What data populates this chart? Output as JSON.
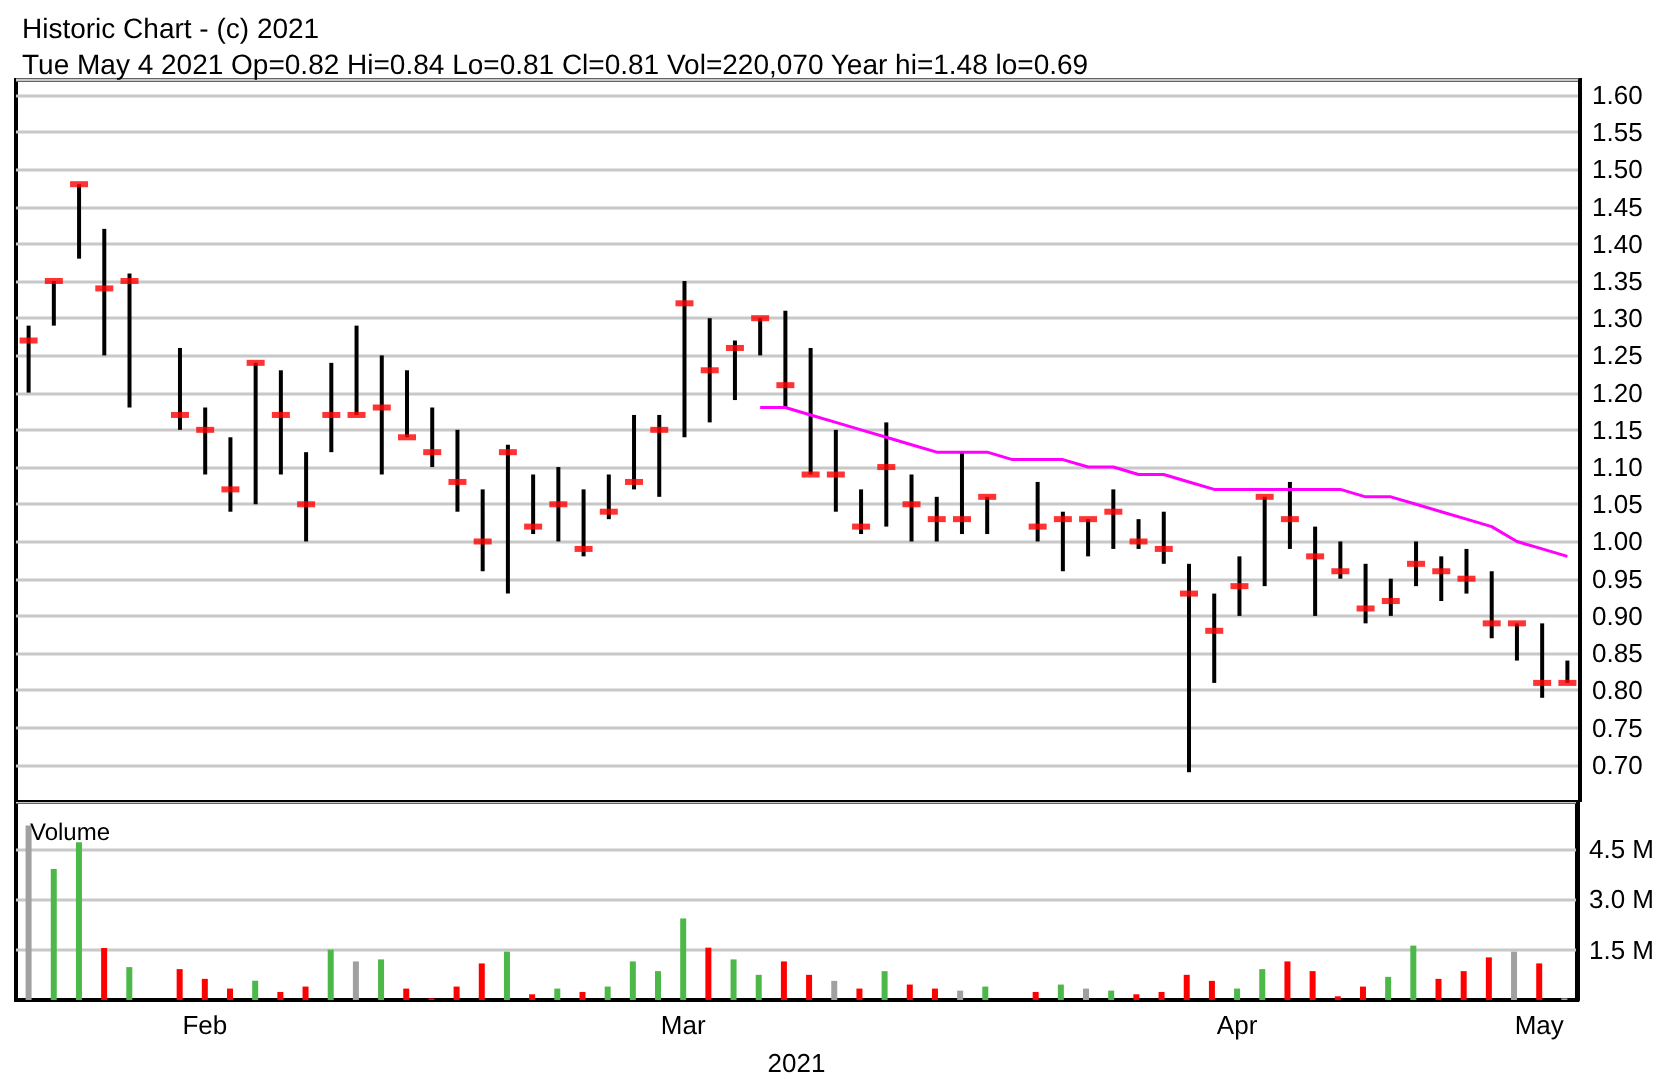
{
  "chart_data": [
    {
      "type": "bar",
      "title": "Historic Chart - (c) 2021",
      "subtitle": "Tue May 4 2021 Op=0.82 Hi=0.84 Lo=0.81 Cl=0.81 Vol=220,070 Year hi=1.48 lo=0.69",
      "tick_labels": "y",
      "grid": "y",
      "categories": [
        null,
        null,
        null,
        null,
        null,
        null,
        null,
        null,
        null,
        null,
        null,
        null,
        null,
        null,
        null,
        null,
        null,
        null,
        null,
        null,
        null,
        null,
        null,
        null,
        null,
        null,
        null,
        null,
        null,
        null,
        null,
        null,
        null,
        null,
        null,
        null,
        null,
        null,
        null,
        null,
        null,
        null,
        null,
        null,
        null,
        null,
        null,
        null,
        null,
        null,
        null,
        null,
        null,
        null,
        null,
        null,
        null,
        null,
        null,
        null,
        null,
        null
      ],
      "series": [
        {
          "color": "#000000",
          "base": [
            1.2,
            1.29,
            1.38,
            1.25,
            1.18,
            null,
            1.15,
            1.09,
            1.04,
            1.05,
            1.09,
            1.0,
            1.12,
            1.17,
            1.09,
            1.14,
            1.1,
            1.04,
            0.96,
            0.93,
            1.01,
            1.0,
            0.98,
            1.03,
            1.07,
            1.06,
            1.14,
            1.16,
            1.19,
            1.25,
            1.18,
            1.09,
            1.04,
            1.01,
            1.02,
            1.0,
            1.0,
            1.01,
            1.01,
            null,
            1.0,
            0.96,
            0.98,
            0.99,
            0.99,
            0.97,
            0.69,
            0.81,
            0.9,
            0.94,
            0.99,
            0.9,
            0.95,
            0.89,
            0.9,
            0.94,
            0.92,
            0.93,
            0.87,
            0.84,
            0.79,
            0.81
          ],
          "values": [
            0.09,
            0.06,
            0.1,
            0.17,
            0.18,
            null,
            0.11,
            0.09,
            0.1,
            0.19,
            0.14,
            0.12,
            0.12,
            0.12,
            0.16,
            0.09,
            0.08,
            0.11,
            0.11,
            0.2,
            0.08,
            0.1,
            0.09,
            0.06,
            0.1,
            0.11,
            0.21,
            0.14,
            0.08,
            0.05,
            0.13,
            0.17,
            0.11,
            0.06,
            0.14,
            0.09,
            0.06,
            0.11,
            0.05,
            null,
            0.08,
            0.08,
            0.05,
            0.08,
            0.04,
            0.07,
            0.28,
            0.12,
            0.08,
            0.12,
            0.09,
            0.12,
            0.05,
            0.08,
            0.05,
            0.06,
            0.06,
            0.06,
            0.09,
            0.05,
            0.1,
            0.03
          ]
        },
        {
          "type": "scatter",
          "color": "#ff0000",
          "values": [
            1.27,
            1.35,
            1.48,
            1.34,
            1.35,
            null,
            1.17,
            1.15,
            1.07,
            1.24,
            1.17,
            1.05,
            1.17,
            1.17,
            1.18,
            1.14,
            1.12,
            1.08,
            1.0,
            1.12,
            1.02,
            1.05,
            0.99,
            1.04,
            1.08,
            1.15,
            1.32,
            1.23,
            1.26,
            1.3,
            1.21,
            1.09,
            1.09,
            1.02,
            1.1,
            1.05,
            1.03,
            1.03,
            1.06,
            null,
            1.02,
            1.03,
            1.03,
            1.04,
            1.0,
            0.99,
            0.93,
            0.88,
            0.94,
            1.06,
            1.03,
            0.98,
            0.96,
            0.91,
            0.92,
            0.97,
            0.96,
            0.95,
            0.89,
            0.89,
            0.81,
            0.81
          ]
        },
        {
          "type": "line",
          "color": "#ff00ff",
          "marker": "none",
          "values": [
            null,
            null,
            null,
            null,
            null,
            null,
            null,
            null,
            null,
            null,
            null,
            null,
            null,
            null,
            null,
            null,
            null,
            null,
            null,
            null,
            null,
            null,
            null,
            null,
            null,
            null,
            null,
            null,
            null,
            1.18,
            1.18,
            1.17,
            1.16,
            1.15,
            1.14,
            1.13,
            1.12,
            1.12,
            1.12,
            1.11,
            1.11,
            1.11,
            1.1,
            1.1,
            1.09,
            1.09,
            1.08,
            1.07,
            1.07,
            1.07,
            1.07,
            1.07,
            1.07,
            1.06,
            1.06,
            1.05,
            1.04,
            1.03,
            1.02,
            1.0,
            0.99,
            0.98
          ]
        }
      ],
      "ylim": [
        0.65,
        1.62
      ],
      "yticks": [
        {
          "value": 0.7,
          "label": "0.70"
        },
        {
          "value": 0.75,
          "label": "0.75"
        },
        {
          "value": 0.8,
          "label": "0.80"
        },
        {
          "value": 0.85,
          "label": "0.85"
        },
        {
          "value": 0.9,
          "label": "0.90"
        },
        {
          "value": 0.95,
          "label": "0.95"
        },
        {
          "value": 1.0,
          "label": "1.00"
        },
        {
          "value": 1.05,
          "label": "1.05"
        },
        {
          "value": 1.1,
          "label": "1.10"
        },
        {
          "value": 1.15,
          "label": "1.15"
        },
        {
          "value": 1.2,
          "label": "1.20"
        },
        {
          "value": 1.25,
          "label": "1.25"
        },
        {
          "value": 1.3,
          "label": "1.30"
        },
        {
          "value": 1.35,
          "label": "1.35"
        },
        {
          "value": 1.4,
          "label": "1.40"
        },
        {
          "value": 1.45,
          "label": "1.45"
        },
        {
          "value": 1.5,
          "label": "1.50"
        },
        {
          "value": 1.55,
          "label": "1.55"
        },
        {
          "value": 1.6,
          "label": "1.60"
        }
      ]
    },
    {
      "type": "bar",
      "ylabel": "Volume",
      "xlabel": "2021",
      "grid": "y",
      "categories": [
        null,
        null,
        null,
        null,
        null,
        null,
        null,
        "Feb",
        null,
        null,
        null,
        null,
        null,
        null,
        null,
        null,
        null,
        null,
        null,
        null,
        null,
        null,
        null,
        null,
        null,
        null,
        "Mar",
        null,
        null,
        null,
        null,
        null,
        null,
        null,
        null,
        null,
        null,
        null,
        null,
        null,
        null,
        null,
        null,
        null,
        null,
        null,
        null,
        null,
        "Apr",
        null,
        null,
        null,
        null,
        null,
        null,
        null,
        null,
        null,
        null,
        null,
        "May",
        null
      ],
      "values": [
        5.2,
        3.9,
        4.7,
        1.55,
        0.98,
        null,
        0.92,
        0.63,
        0.34,
        0.57,
        0.24,
        0.4,
        1.5,
        1.15,
        1.21,
        0.34,
        0.05,
        0.4,
        1.09,
        1.44,
        0.17,
        0.34,
        0.24,
        0.4,
        1.15,
        0.86,
        2.43,
        1.56,
        1.21,
        0.75,
        1.15,
        0.75,
        0.57,
        0.34,
        0.86,
        0.46,
        0.34,
        0.28,
        0.4,
        null,
        0.24,
        0.46,
        0.34,
        0.28,
        0.17,
        0.24,
        0.75,
        0.57,
        0.34,
        0.92,
        1.15,
        0.86,
        0.11,
        0.4,
        0.69,
        1.62,
        0.63,
        0.86,
        1.27,
        1.44,
        1.09,
        0.05
      ],
      "colors": [
        "#a0a0a0",
        "#4cb848",
        "#4cb848",
        "#ff0000",
        "#4cb848",
        null,
        "#ff0000",
        "#ff0000",
        "#ff0000",
        "#4cb848",
        "#ff0000",
        "#ff0000",
        "#4cb848",
        "#a0a0a0",
        "#4cb848",
        "#ff0000",
        "#ff0000",
        "#ff0000",
        "#ff0000",
        "#4cb848",
        "#ff0000",
        "#4cb848",
        "#ff0000",
        "#4cb848",
        "#4cb848",
        "#4cb848",
        "#4cb848",
        "#ff0000",
        "#4cb848",
        "#4cb848",
        "#ff0000",
        "#ff0000",
        "#a0a0a0",
        "#ff0000",
        "#4cb848",
        "#ff0000",
        "#ff0000",
        "#a0a0a0",
        "#4cb848",
        null,
        "#ff0000",
        "#4cb848",
        "#a0a0a0",
        "#4cb848",
        "#ff0000",
        "#ff0000",
        "#ff0000",
        "#ff0000",
        "#4cb848",
        "#4cb848",
        "#ff0000",
        "#ff0000",
        "#ff0000",
        "#ff0000",
        "#4cb848",
        "#4cb848",
        "#ff0000",
        "#ff0000",
        "#ff0000",
        "#a0a0a0",
        "#ff0000",
        "#a0a0a0"
      ],
      "ylim": [
        0,
        5.9
      ],
      "yticks": [
        {
          "value": 1.5,
          "label": "1.5 M"
        },
        {
          "value": 3.0,
          "label": "3.0 M"
        },
        {
          "value": 4.5,
          "label": "4.5 M"
        }
      ]
    }
  ]
}
